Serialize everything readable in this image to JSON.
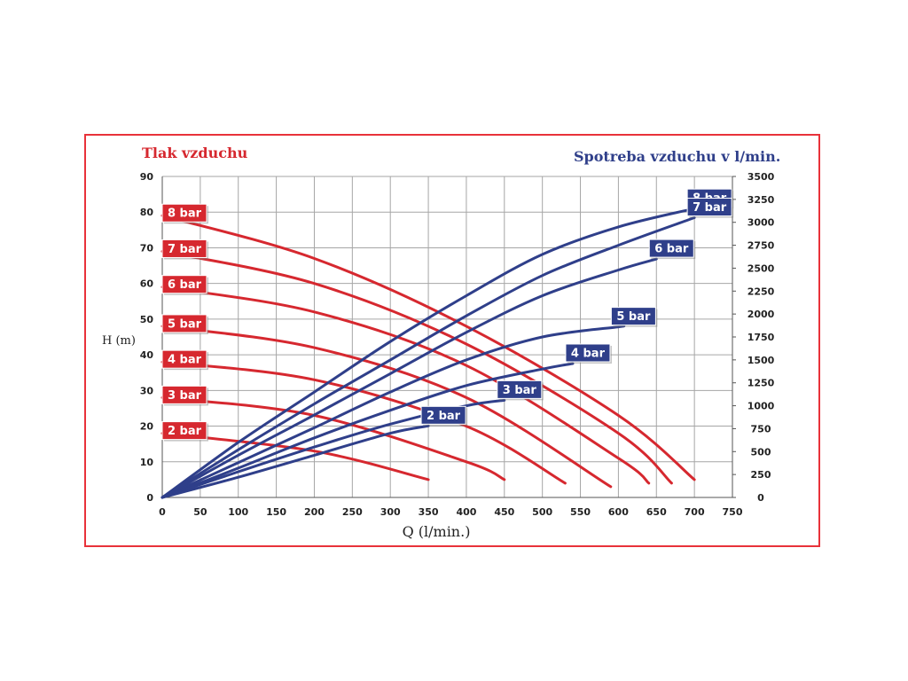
{
  "colors": {
    "pressure": "#d6282f",
    "consumption": "#2f3f8a",
    "grid": "#a6a6a6",
    "frame": "#e8323a"
  },
  "chart_data": {
    "type": "line",
    "title_left": "Tlak vzduchu",
    "title_right": "Spotreba vzduchu v l/min.",
    "xlabel": "Q (l/min.)",
    "ylabel_left": "H (m)",
    "xlim": [
      0,
      750
    ],
    "ylim_left": [
      0,
      90
    ],
    "ylim_right": [
      0,
      3500
    ],
    "x_ticks": [
      "0",
      "50",
      "100",
      "150",
      "200",
      "250",
      "300",
      "350",
      "400",
      "450",
      "500",
      "550",
      "600",
      "650",
      "700",
      "750"
    ],
    "y_left_ticks": [
      "0",
      "10",
      "20",
      "30",
      "40",
      "50",
      "60",
      "70",
      "80",
      "90"
    ],
    "y_right_ticks": [
      "0",
      "250",
      "500",
      "750",
      "1000",
      "1250",
      "1500",
      "1750",
      "2000",
      "2250",
      "2500",
      "2750",
      "3000",
      "3250",
      "3500"
    ],
    "grid": true,
    "pressure_series": [
      {
        "name": "8 bar",
        "x": [
          0,
          200,
          400,
          600,
          700
        ],
        "y": [
          79,
          67,
          48,
          23,
          5
        ]
      },
      {
        "name": "7 bar",
        "x": [
          0,
          200,
          400,
          600,
          670
        ],
        "y": [
          69,
          60,
          43,
          18,
          4
        ]
      },
      {
        "name": "6 bar",
        "x": [
          0,
          200,
          400,
          600,
          640
        ],
        "y": [
          59,
          52,
          37,
          11,
          4
        ]
      },
      {
        "name": "5 bar",
        "x": [
          0,
          200,
          400,
          590
        ],
        "y": [
          48,
          42,
          28,
          3
        ]
      },
      {
        "name": "4 bar",
        "x": [
          0,
          200,
          400,
          530
        ],
        "y": [
          38,
          33,
          20,
          4
        ]
      },
      {
        "name": "3 bar",
        "x": [
          0,
          200,
          400,
          450
        ],
        "y": [
          28,
          23,
          10,
          5
        ]
      },
      {
        "name": "2 bar",
        "x": [
          0,
          200,
          350
        ],
        "y": [
          18,
          13,
          5
        ]
      }
    ],
    "consumption_series": [
      {
        "name": "8 bar",
        "x": [
          0,
          100,
          200,
          300,
          400,
          500,
          600,
          700
        ],
        "y": [
          0,
          600,
          1150,
          1700,
          2200,
          2650,
          2950,
          3150
        ]
      },
      {
        "name": "7 bar",
        "x": [
          0,
          100,
          200,
          300,
          400,
          500,
          600,
          700
        ],
        "y": [
          0,
          520,
          1020,
          1500,
          1980,
          2420,
          2750,
          3050
        ]
      },
      {
        "name": "6 bar",
        "x": [
          0,
          100,
          200,
          300,
          400,
          500,
          600,
          650
        ],
        "y": [
          0,
          460,
          900,
          1350,
          1800,
          2200,
          2480,
          2600
        ]
      },
      {
        "name": "5 bar",
        "x": [
          0,
          100,
          200,
          300,
          400,
          500,
          600,
          600
        ],
        "y": [
          0,
          380,
          760,
          1150,
          1500,
          1750,
          1860,
          1860
        ]
      },
      {
        "name": "4 bar",
        "x": [
          0,
          100,
          200,
          300,
          400,
          500,
          540
        ],
        "y": [
          0,
          320,
          650,
          950,
          1220,
          1400,
          1460
        ]
      },
      {
        "name": "3 bar",
        "x": [
          0,
          100,
          200,
          300,
          400,
          450
        ],
        "y": [
          0,
          280,
          550,
          800,
          1000,
          1060
        ]
      },
      {
        "name": "2 bar",
        "x": [
          0,
          100,
          200,
          300,
          350
        ],
        "y": [
          0,
          220,
          460,
          700,
          780
        ]
      }
    ]
  }
}
